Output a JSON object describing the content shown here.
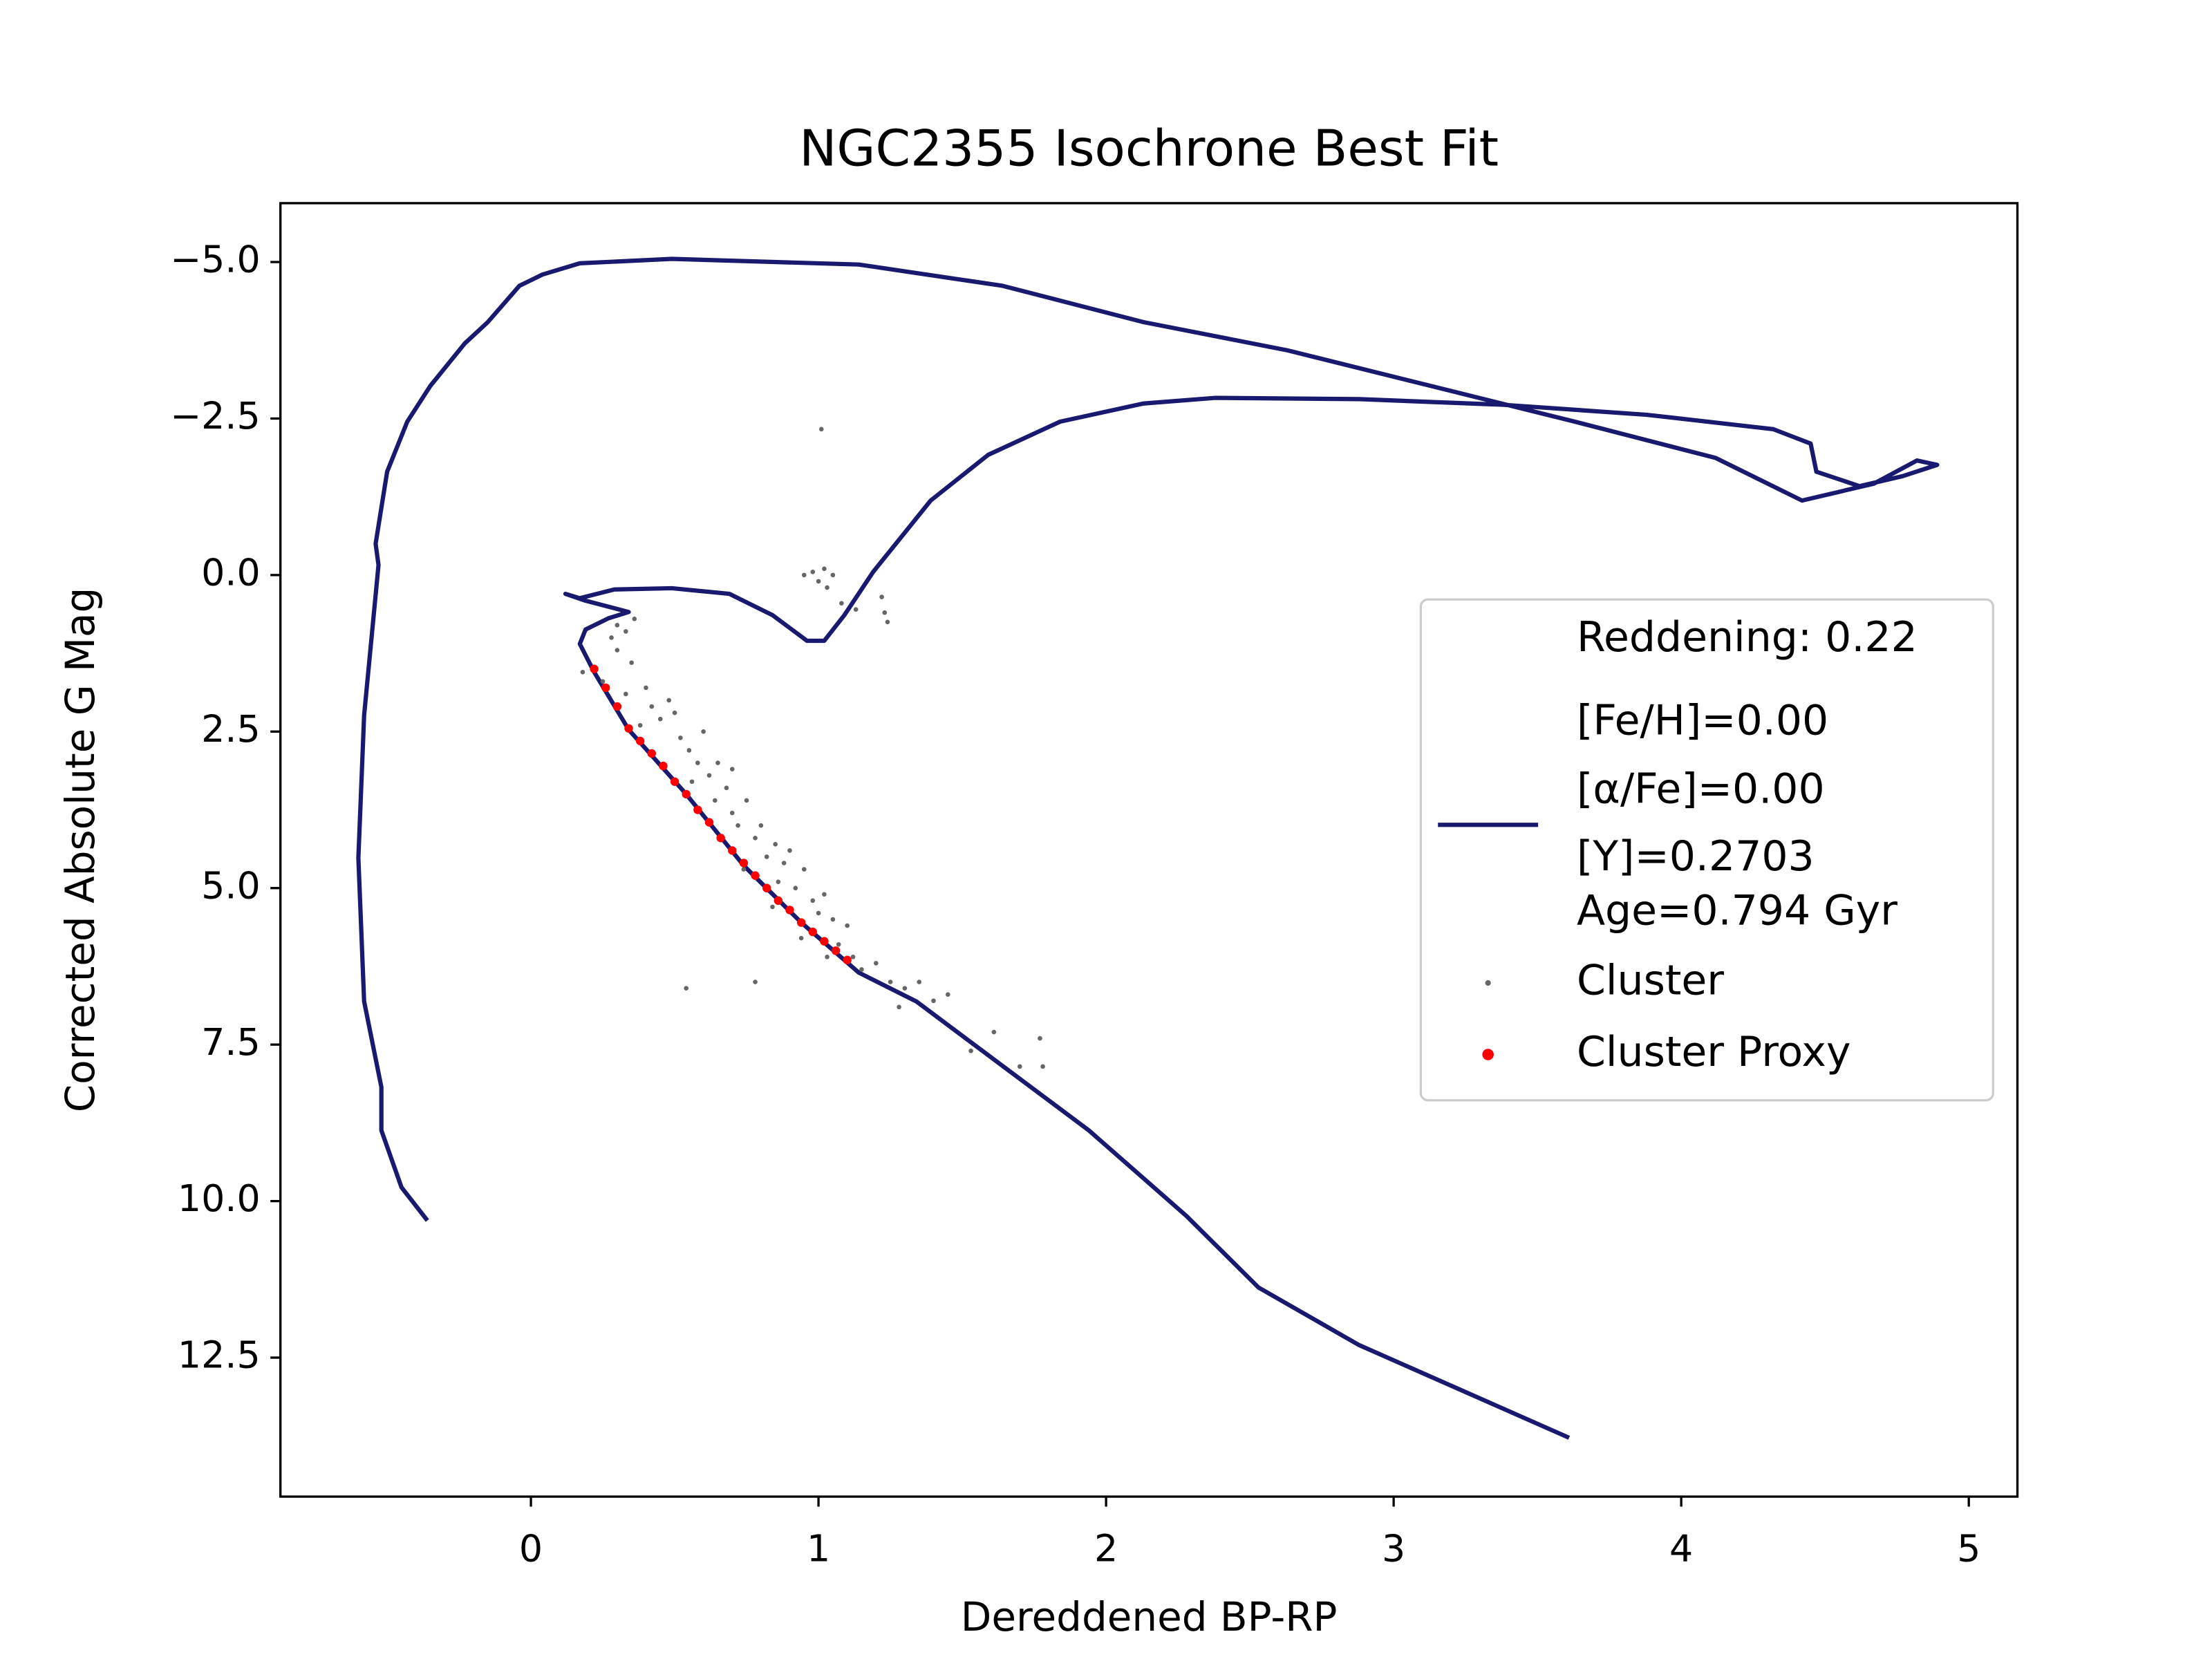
{
  "chart_data": {
    "type": "scatter",
    "title": "NGC2355 Isochrone Best Fit",
    "x_label": "Dereddened BP-RP",
    "y_label": "Corrected Absolute G Mag",
    "xlim": [
      -0.871,
      5.169
    ],
    "ylim": [
      -5.94,
      14.72
    ],
    "y_inverted": true,
    "xticks": [
      0,
      1,
      2,
      3,
      4,
      5
    ],
    "yticks": [
      {
        "value": -5,
        "label": "−5.0"
      },
      {
        "value": -2.5,
        "label": "−2.5"
      },
      {
        "value": 0,
        "label": "0.0"
      },
      2.5,
      {
        "value": 5,
        "label": "5.0"
      },
      7.5,
      {
        "value": 10,
        "label": "10.0"
      },
      12.5
    ],
    "legend_annotation": "Reddening: 0.22",
    "legend": "center right",
    "series": [
      {
        "name": "[Fe/H]=0.00\n[α/Fe]=0.00\n[Y]=0.2703\nAge=0.794 Gyr",
        "kind": "line",
        "color": "#191970",
        "x": [
          3.61,
          2.88,
          2.53,
          2.28,
          1.94,
          1.64,
          1.34,
          1.14,
          0.94,
          0.74,
          0.54,
          0.34,
          0.22,
          0.17,
          0.19,
          0.27,
          0.34,
          0.29,
          0.19,
          0.12,
          0.17,
          0.29,
          0.49,
          0.69,
          0.84,
          0.96,
          1.02,
          1.09,
          1.19,
          1.39,
          1.59,
          1.84,
          2.13,
          2.38,
          2.88,
          3.38,
          3.88,
          4.32,
          4.45,
          4.47,
          4.62,
          4.77,
          4.89,
          4.82,
          4.67,
          4.42,
          4.12,
          3.63,
          3.13,
          2.63,
          2.13,
          1.64,
          1.14,
          0.49,
          0.17,
          0.04,
          -0.04,
          -0.15,
          -0.23,
          -0.35,
          -0.43,
          -0.5,
          -0.54,
          -0.53,
          -0.58,
          -0.6,
          -0.58,
          -0.52,
          -0.52,
          -0.45,
          -0.36
        ],
        "values": [
          13.78,
          12.3,
          11.38,
          10.24,
          8.87,
          7.84,
          6.81,
          6.35,
          5.55,
          4.64,
          3.5,
          2.47,
          1.55,
          1.1,
          0.87,
          0.69,
          0.59,
          0.53,
          0.41,
          0.3,
          0.37,
          0.23,
          0.21,
          0.3,
          0.64,
          1.05,
          1.05,
          0.64,
          -0.05,
          -1.19,
          -1.92,
          -2.45,
          -2.74,
          -2.83,
          -2.81,
          -2.72,
          -2.56,
          -2.33,
          -2.1,
          -1.65,
          -1.42,
          -1.58,
          -1.76,
          -1.83,
          -1.46,
          -1.19,
          -1.87,
          -2.45,
          -3.02,
          -3.59,
          -4.04,
          -4.62,
          -4.96,
          -5.05,
          -4.98,
          -4.8,
          -4.62,
          -4.04,
          -3.7,
          -3.02,
          -2.45,
          -1.65,
          -0.5,
          -0.16,
          2.24,
          4.52,
          6.81,
          8.18,
          8.87,
          9.78,
          10.31
        ]
      },
      {
        "name": "Cluster",
        "kind": "scatter",
        "color": "#666666",
        "x": [
          1.01,
          0.95,
          0.98,
          1.0,
          1.02,
          1.05,
          1.03,
          1.08,
          1.22,
          1.23,
          1.24,
          1.13,
          0.54,
          0.78,
          1.53,
          1.61,
          1.7,
          1.77,
          1.78,
          0.3,
          0.33,
          0.36,
          0.28,
          0.3,
          0.22,
          0.18,
          0.25,
          0.35,
          0.33,
          0.4,
          0.42,
          0.45,
          0.5,
          0.52,
          0.55,
          0.6,
          0.58,
          0.62,
          0.65,
          0.68,
          0.7,
          0.64,
          0.7,
          0.72,
          0.75,
          0.78,
          0.8,
          0.82,
          0.85,
          0.88,
          0.9,
          0.86,
          0.92,
          0.95,
          0.98,
          1.0,
          1.02,
          1.05,
          1.1,
          1.07,
          1.12,
          1.15,
          1.2,
          1.25,
          1.3,
          1.35,
          1.4,
          1.45,
          1.28,
          0.48,
          0.38,
          0.56,
          0.66,
          0.74,
          0.84,
          0.94,
          1.03
        ],
        "values": [
          -2.33,
          0.0,
          -0.05,
          0.1,
          -0.1,
          0.0,
          0.2,
          0.45,
          0.35,
          0.6,
          0.75,
          0.55,
          6.6,
          6.5,
          7.6,
          7.3,
          7.85,
          7.4,
          7.85,
          0.8,
          0.9,
          0.7,
          1.0,
          1.2,
          1.5,
          1.55,
          1.7,
          1.4,
          1.9,
          1.8,
          2.1,
          2.3,
          2.2,
          2.6,
          2.8,
          2.5,
          3.0,
          3.2,
          3.0,
          3.4,
          3.1,
          3.6,
          3.8,
          4.0,
          3.6,
          4.2,
          4.0,
          4.5,
          4.3,
          4.6,
          4.4,
          4.9,
          5.0,
          4.7,
          5.2,
          5.4,
          5.1,
          5.5,
          5.6,
          5.9,
          6.1,
          6.3,
          6.2,
          6.5,
          6.6,
          6.5,
          6.8,
          6.7,
          6.9,
          2.0,
          2.4,
          3.3,
          4.2,
          4.7,
          5.3,
          5.8,
          6.1
        ]
      },
      {
        "name": "Cluster Proxy",
        "kind": "scatter",
        "color": "#ff0000",
        "x": [
          0.22,
          0.26,
          0.3,
          0.34,
          0.38,
          0.42,
          0.46,
          0.5,
          0.54,
          0.58,
          0.62,
          0.66,
          0.7,
          0.74,
          0.78,
          0.82,
          0.86,
          0.9,
          0.94,
          0.98,
          1.02,
          1.06,
          1.1
        ],
        "values": [
          1.5,
          1.8,
          2.1,
          2.45,
          2.65,
          2.85,
          3.05,
          3.3,
          3.5,
          3.75,
          3.95,
          4.2,
          4.4,
          4.6,
          4.8,
          5.0,
          5.2,
          5.35,
          5.55,
          5.7,
          5.85,
          6.0,
          6.15
        ]
      }
    ]
  }
}
